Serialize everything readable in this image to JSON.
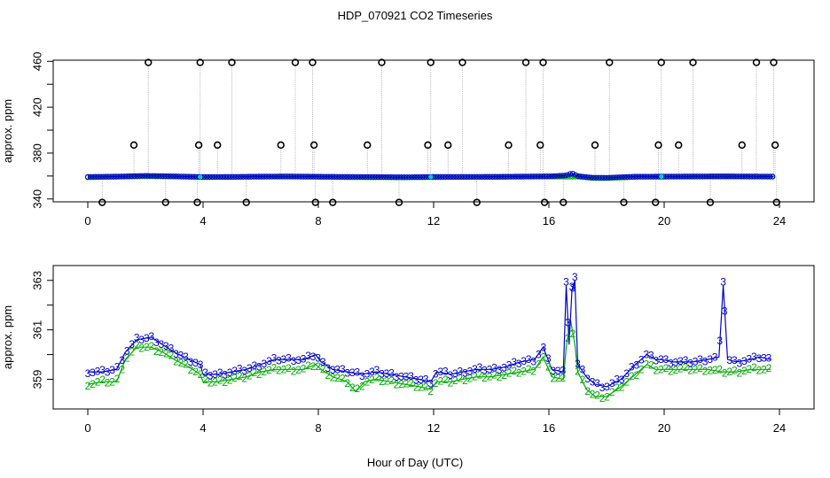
{
  "chart_data": {
    "title": "HDP_070921  CO2 Timeseries",
    "xlabel": "Hour of Day (UTC)",
    "colors": {
      "series2": "#00aa00",
      "series3": "#0000cc",
      "spikes": "#000000",
      "cyan": "#00cccc",
      "vlines": "#a8a8a8"
    },
    "panels": [
      {
        "type": "scatter",
        "ylabel": "approx. ppm",
        "xlim": [
          -1.2,
          25.2
        ],
        "ylim": [
          337.5,
          461
        ],
        "xticks": [
          0,
          4,
          8,
          12,
          16,
          20,
          24
        ],
        "yticks": [
          340,
          360,
          380,
          400,
          420,
          440,
          460
        ],
        "ytick_labels": [
          "340",
          "",
          "380",
          "",
          "420",
          "",
          "460"
        ],
        "baseline_series": [
          {
            "name": "3",
            "color": "#0000cc",
            "points": [
              [
                0,
                359.3
              ],
              [
                1,
                359.6
              ],
              [
                2,
                360.2
              ],
              [
                3,
                359.8
              ],
              [
                4,
                359.2
              ],
              [
                5,
                359.3
              ],
              [
                6,
                359.6
              ],
              [
                7,
                359.7
              ],
              [
                8,
                359.5
              ],
              [
                9,
                359.3
              ],
              [
                10,
                359.2
              ],
              [
                11,
                359.0
              ],
              [
                12,
                359.3
              ],
              [
                13,
                359.3
              ],
              [
                14,
                359.4
              ],
              [
                15,
                359.6
              ],
              [
                16,
                359.8
              ],
              [
                16.6,
                360.5
              ],
              [
                16.8,
                362.5
              ],
              [
                17,
                360.0
              ],
              [
                17.5,
                358.6
              ],
              [
                18,
                358.5
              ],
              [
                19,
                359.5
              ],
              [
                20,
                359.6
              ],
              [
                21,
                359.7
              ],
              [
                22,
                359.8
              ],
              [
                23,
                359.7
              ],
              [
                23.8,
                359.6
              ]
            ]
          },
          {
            "name": "2",
            "color": "#00aa00",
            "points": [
              [
                0,
                358.8
              ],
              [
                1,
                359.2
              ],
              [
                2,
                359.7
              ],
              [
                3,
                359.4
              ],
              [
                4,
                358.9
              ],
              [
                5,
                359.0
              ],
              [
                6,
                359.2
              ],
              [
                7,
                359.3
              ],
              [
                8,
                359.1
              ],
              [
                9,
                358.9
              ],
              [
                10,
                358.8
              ],
              [
                11,
                358.7
              ],
              [
                12,
                358.9
              ],
              [
                13,
                359.0
              ],
              [
                14,
                359.0
              ],
              [
                15,
                359.2
              ],
              [
                16,
                359.4
              ],
              [
                17,
                359.4
              ],
              [
                17.5,
                358.2
              ],
              [
                18,
                358.1
              ],
              [
                19,
                359.1
              ],
              [
                20,
                359.2
              ],
              [
                21,
                359.3
              ],
              [
                22,
                359.4
              ],
              [
                23,
                359.3
              ],
              [
                23.8,
                359.2
              ]
            ]
          }
        ],
        "spikes": [
          [
            0.5,
            337
          ],
          [
            1.6,
            387
          ],
          [
            2.1,
            459
          ],
          [
            2.7,
            337
          ],
          [
            3.8,
            337
          ],
          [
            3.85,
            387
          ],
          [
            3.9,
            459
          ],
          [
            4.5,
            387
          ],
          [
            5.0,
            459
          ],
          [
            5.5,
            337
          ],
          [
            6.7,
            387
          ],
          [
            7.2,
            459
          ],
          [
            7.8,
            459
          ],
          [
            7.85,
            387
          ],
          [
            7.9,
            337
          ],
          [
            8.5,
            337
          ],
          [
            9.7,
            387
          ],
          [
            10.2,
            459
          ],
          [
            10.8,
            337
          ],
          [
            11.8,
            387
          ],
          [
            11.9,
            459
          ],
          [
            12.5,
            387
          ],
          [
            13.0,
            459
          ],
          [
            13.5,
            337
          ],
          [
            14.6,
            387
          ],
          [
            15.2,
            459
          ],
          [
            15.7,
            387
          ],
          [
            15.8,
            459
          ],
          [
            15.85,
            337
          ],
          [
            16.5,
            337
          ],
          [
            17.6,
            387
          ],
          [
            18.1,
            459
          ],
          [
            18.6,
            337
          ],
          [
            19.7,
            337
          ],
          [
            19.8,
            387
          ],
          [
            19.9,
            459
          ],
          [
            20.5,
            387
          ],
          [
            21.0,
            459
          ],
          [
            21.6,
            337
          ],
          [
            22.7,
            387
          ],
          [
            23.2,
            459
          ],
          [
            23.8,
            459
          ],
          [
            23.85,
            387
          ],
          [
            23.9,
            337
          ]
        ]
      },
      {
        "type": "line",
        "ylabel": "approx. ppm",
        "xlim": [
          -1.2,
          25.2
        ],
        "ylim": [
          357.8,
          363.6
        ],
        "xticks": [
          0,
          4,
          8,
          12,
          16,
          20,
          24
        ],
        "yticks": [
          359,
          360,
          361,
          362,
          363
        ],
        "ytick_labels": [
          "359",
          "",
          "361",
          "",
          "363"
        ],
        "series": [
          {
            "name": "3",
            "color": "#0000cc",
            "points": [
              [
                0,
                359.3
              ],
              [
                0.5,
                359.3
              ],
              [
                1,
                359.4
              ],
              [
                1.3,
                360.1
              ],
              [
                1.7,
                360.6
              ],
              [
                2.2,
                360.7
              ],
              [
                2.6,
                360.4
              ],
              [
                3,
                360.1
              ],
              [
                3.5,
                359.8
              ],
              [
                3.9,
                359.6
              ],
              [
                4,
                359.2
              ],
              [
                4.5,
                359.2
              ],
              [
                5,
                359.3
              ],
              [
                5.5,
                359.4
              ],
              [
                6,
                359.6
              ],
              [
                6.5,
                359.8
              ],
              [
                7,
                359.8
              ],
              [
                7.5,
                359.8
              ],
              [
                7.9,
                360.0
              ],
              [
                8.1,
                359.7
              ],
              [
                8.5,
                359.4
              ],
              [
                9,
                359.3
              ],
              [
                9.5,
                359.2
              ],
              [
                10,
                359.3
              ],
              [
                10.5,
                359.2
              ],
              [
                11,
                359.1
              ],
              [
                11.5,
                359.0
              ],
              [
                11.9,
                358.9
              ],
              [
                12.1,
                359.3
              ],
              [
                12.6,
                359.2
              ],
              [
                13,
                359.3
              ],
              [
                13.5,
                359.4
              ],
              [
                14,
                359.4
              ],
              [
                14.5,
                359.5
              ],
              [
                15,
                359.7
              ],
              [
                15.5,
                359.8
              ],
              [
                15.8,
                360.3
              ],
              [
                16.1,
                359.4
              ],
              [
                16.5,
                359.3
              ],
              [
                16.6,
                362.8
              ],
              [
                16.7,
                360.4
              ],
              [
                16.8,
                362.6
              ],
              [
                16.9,
                363.0
              ],
              [
                17,
                359.6
              ],
              [
                17.3,
                359.1
              ],
              [
                17.6,
                358.8
              ],
              [
                18,
                358.7
              ],
              [
                18.5,
                359.0
              ],
              [
                19,
                359.6
              ],
              [
                19.4,
                360.0
              ],
              [
                19.7,
                359.8
              ],
              [
                19.9,
                359.8
              ],
              [
                20.3,
                359.7
              ],
              [
                21,
                359.7
              ],
              [
                21.5,
                359.8
              ],
              [
                21.9,
                359.9
              ],
              [
                22.05,
                362.8
              ],
              [
                22.2,
                359.8
              ],
              [
                22.5,
                359.7
              ],
              [
                23,
                359.8
              ],
              [
                23.3,
                359.9
              ],
              [
                23.7,
                359.8
              ]
            ]
          },
          {
            "name": "2",
            "color": "#00aa00",
            "points": [
              [
                0,
                358.8
              ],
              [
                0.5,
                358.9
              ],
              [
                1,
                358.9
              ],
              [
                1.3,
                359.8
              ],
              [
                1.7,
                360.3
              ],
              [
                2.2,
                360.3
              ],
              [
                2.6,
                360.1
              ],
              [
                3,
                359.8
              ],
              [
                3.5,
                359.5
              ],
              [
                3.9,
                359.2
              ],
              [
                4,
                358.9
              ],
              [
                4.5,
                358.9
              ],
              [
                5,
                359.0
              ],
              [
                5.5,
                359.1
              ],
              [
                6,
                359.3
              ],
              [
                6.5,
                359.4
              ],
              [
                7,
                359.4
              ],
              [
                7.5,
                359.4
              ],
              [
                7.9,
                359.6
              ],
              [
                8.1,
                359.4
              ],
              [
                8.5,
                359.1
              ],
              [
                9,
                358.9
              ],
              [
                9.3,
                358.5
              ],
              [
                9.6,
                358.9
              ],
              [
                10,
                359.0
              ],
              [
                10.5,
                358.9
              ],
              [
                11,
                358.8
              ],
              [
                11.5,
                358.7
              ],
              [
                11.9,
                358.6
              ],
              [
                12.1,
                358.9
              ],
              [
                12.6,
                358.9
              ],
              [
                13,
                359.0
              ],
              [
                13.5,
                359.1
              ],
              [
                14,
                359.1
              ],
              [
                14.5,
                359.2
              ],
              [
                15,
                359.3
              ],
              [
                15.5,
                359.4
              ],
              [
                15.8,
                359.9
              ],
              [
                16.1,
                359.1
              ],
              [
                16.5,
                359.0
              ],
              [
                16.6,
                360.3
              ],
              [
                16.75,
                361.4
              ],
              [
                16.9,
                360.4
              ],
              [
                17,
                359.3
              ],
              [
                17.3,
                358.6
              ],
              [
                17.6,
                358.3
              ],
              [
                18,
                358.3
              ],
              [
                18.5,
                358.7
              ],
              [
                19,
                359.2
              ],
              [
                19.4,
                359.6
              ],
              [
                19.7,
                359.4
              ],
              [
                19.9,
                359.4
              ],
              [
                20.3,
                359.4
              ],
              [
                21,
                359.4
              ],
              [
                21.5,
                359.4
              ],
              [
                22,
                359.3
              ],
              [
                22.5,
                359.3
              ],
              [
                23,
                359.4
              ],
              [
                23.3,
                359.4
              ],
              [
                23.7,
                359.4
              ]
            ]
          }
        ]
      }
    ]
  }
}
